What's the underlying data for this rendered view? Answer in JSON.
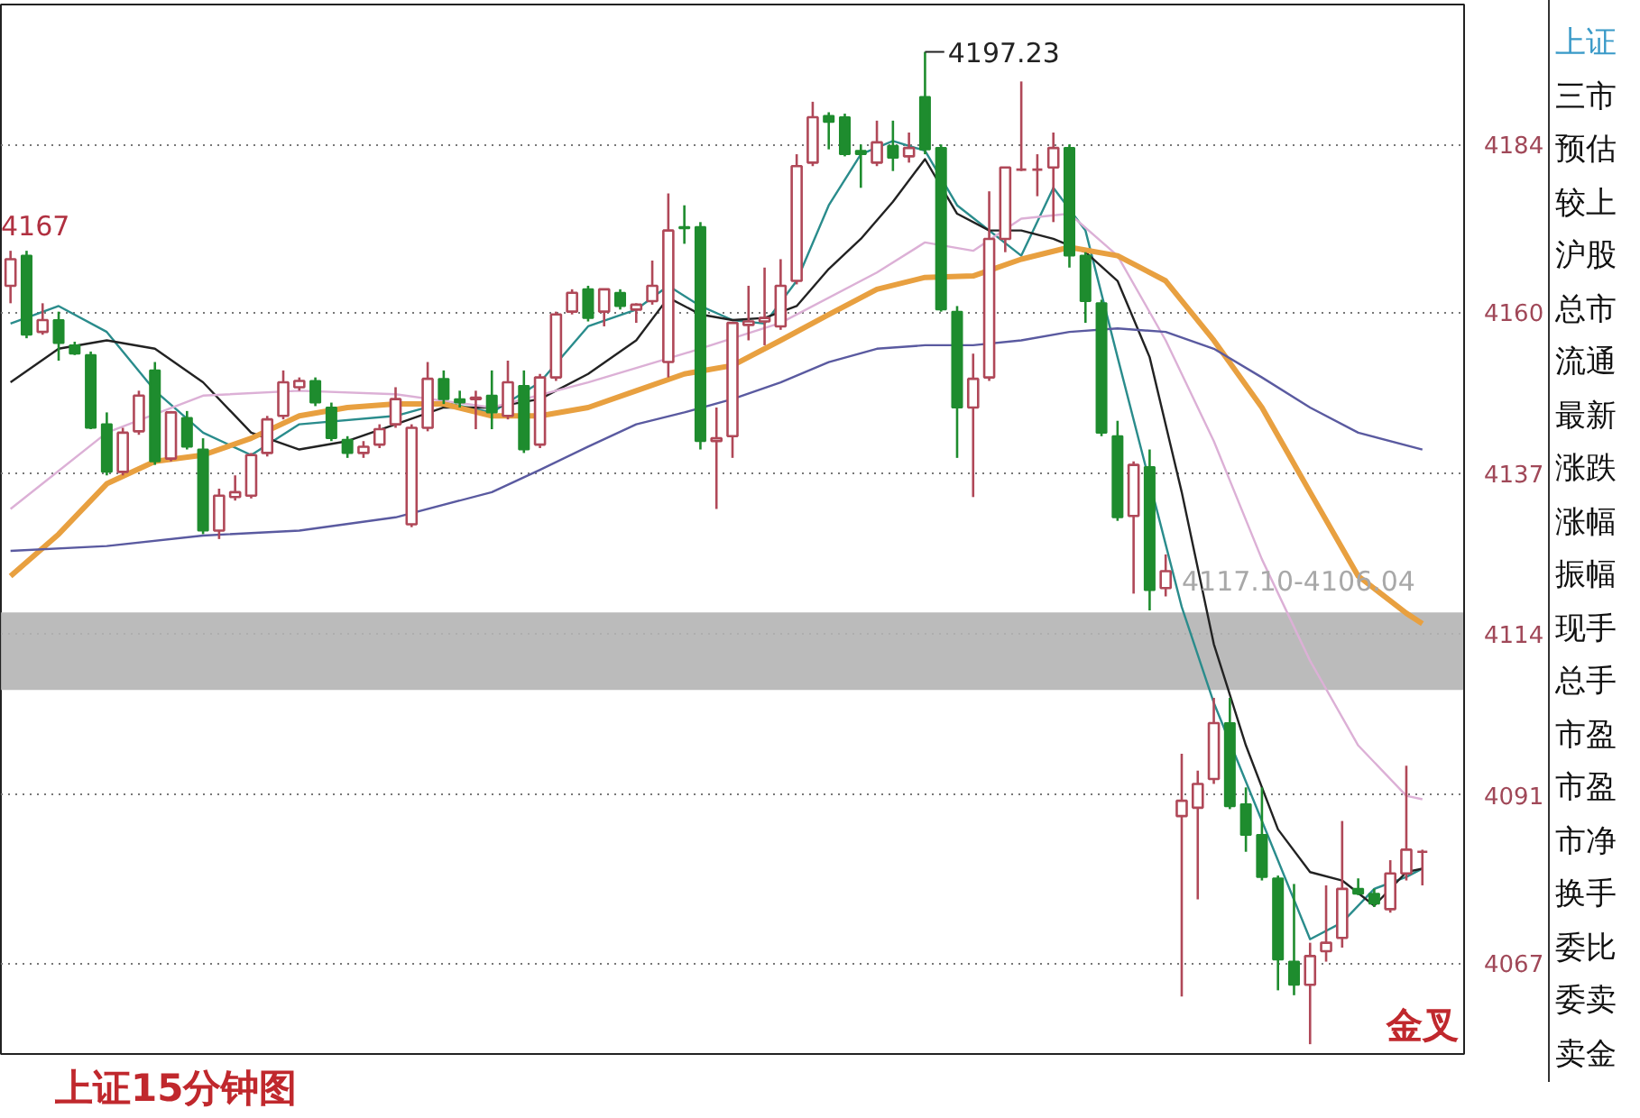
{
  "chart_data": [
    {
      "type": "candlestick",
      "title": "上证15分钟图",
      "categories": [
        null,
        null,
        null,
        null,
        null,
        null,
        null,
        null,
        null,
        null,
        null,
        null,
        null,
        null,
        null,
        null,
        null,
        null,
        null,
        null,
        null,
        null,
        null,
        null,
        null,
        null,
        null,
        null,
        null,
        null,
        null,
        null,
        null,
        null,
        null,
        null,
        null,
        null,
        null,
        null,
        null,
        null,
        null,
        null,
        null,
        null,
        null,
        null,
        null,
        null,
        null,
        null,
        null,
        null,
        null,
        null,
        null,
        null,
        null,
        null,
        null,
        null,
        null,
        null,
        null,
        null,
        null,
        null,
        null,
        null,
        null,
        null,
        null,
        null,
        null,
        null,
        null,
        null,
        null,
        null,
        null,
        null,
        null,
        null,
        null,
        null,
        null,
        null,
        null
      ],
      "ohlc": [
        [
          4163.8,
          4168.8,
          4161.3,
          4167.6
        ],
        [
          4168.1,
          4168.8,
          4156.3,
          4156.8
        ],
        [
          4157.2,
          4161.3,
          4156.8,
          4158.9
        ],
        [
          4158.9,
          4160.1,
          4153.1,
          4155.6
        ],
        [
          4155.3,
          4155.8,
          4153.9,
          4154.1
        ],
        [
          4153.9,
          4154.4,
          4143.3,
          4143.5
        ],
        [
          4144.0,
          4145.7,
          4136.7,
          4137.2
        ],
        [
          4137.2,
          4143.5,
          4136.7,
          4142.8
        ],
        [
          4143.0,
          4148.8,
          4142.5,
          4148.1
        ],
        [
          4151.7,
          4152.9,
          4138.2,
          4138.7
        ],
        [
          4139.1,
          4145.9,
          4138.7,
          4145.7
        ],
        [
          4144.9,
          4145.9,
          4140.4,
          4140.8
        ],
        [
          4140.4,
          4142.0,
          4128.3,
          4128.8
        ],
        [
          4128.8,
          4134.8,
          4127.6,
          4133.8
        ],
        [
          4133.6,
          4136.7,
          4133.1,
          4134.3
        ],
        [
          4133.8,
          4139.9,
          4133.4,
          4139.6
        ],
        [
          4139.9,
          4145.2,
          4139.4,
          4144.7
        ],
        [
          4145.2,
          4151.7,
          4144.7,
          4150.0
        ],
        [
          4149.3,
          4150.7,
          4148.8,
          4150.2
        ],
        [
          4150.2,
          4150.7,
          4146.6,
          4147.1
        ],
        [
          4146.4,
          4147.1,
          4141.6,
          4142.0
        ],
        [
          4141.8,
          4142.3,
          4139.2,
          4139.9
        ],
        [
          4139.9,
          4141.6,
          4139.2,
          4140.8
        ],
        [
          4141.1,
          4144.0,
          4140.6,
          4143.3
        ],
        [
          4144.0,
          4149.3,
          4143.5,
          4147.6
        ],
        [
          4129.7,
          4144.0,
          4129.3,
          4143.5
        ],
        [
          4143.5,
          4152.9,
          4143.0,
          4150.5
        ],
        [
          4150.5,
          4151.7,
          4146.9,
          4147.6
        ],
        [
          4147.6,
          4148.8,
          4146.4,
          4147.1
        ],
        [
          4147.6,
          4148.8,
          4143.3,
          4147.8
        ],
        [
          4148.1,
          4151.7,
          4143.3,
          4145.7
        ],
        [
          4145.2,
          4153.1,
          4144.7,
          4150.0
        ],
        [
          4149.5,
          4151.7,
          4139.9,
          4140.4
        ],
        [
          4141.1,
          4151.2,
          4140.6,
          4150.7
        ],
        [
          4150.7,
          4160.1,
          4150.2,
          4159.7
        ],
        [
          4160.1,
          4163.3,
          4159.7,
          4162.8
        ],
        [
          4163.3,
          4163.8,
          4158.7,
          4159.2
        ],
        [
          4160.1,
          4163.3,
          4158.0,
          4163.3
        ],
        [
          4162.8,
          4163.3,
          4160.4,
          4160.9
        ],
        [
          4160.4,
          4161.3,
          4158.5,
          4161.1
        ],
        [
          4161.6,
          4167.4,
          4161.1,
          4163.8
        ],
        [
          4152.9,
          4177.0,
          4150.7,
          4171.7
        ],
        [
          4172.2,
          4175.3,
          4169.8,
          4172.0
        ],
        [
          4172.2,
          4172.9,
          4140.4,
          4141.6
        ],
        [
          4141.6,
          4146.4,
          4131.9,
          4142.0
        ],
        [
          4142.3,
          4158.5,
          4139.2,
          4158.5
        ],
        [
          4158.2,
          4163.8,
          4156.0,
          4158.7
        ],
        [
          4158.7,
          4166.4,
          4155.3,
          4159.2
        ],
        [
          4158.0,
          4167.6,
          4157.5,
          4163.8
        ],
        [
          4164.5,
          4182.6,
          4164.0,
          4180.9
        ],
        [
          4181.4,
          4190.1,
          4180.9,
          4187.9
        ],
        [
          4188.1,
          4188.6,
          4183.3,
          4187.2
        ],
        [
          4187.9,
          4188.4,
          4182.3,
          4182.6
        ],
        [
          4183.1,
          4184.0,
          4177.8,
          4182.6
        ],
        [
          4181.4,
          4187.4,
          4180.9,
          4184.3
        ],
        [
          4183.8,
          4187.4,
          4180.2,
          4182.1
        ],
        [
          4182.3,
          4185.7,
          4181.4,
          4183.5
        ],
        [
          4190.8,
          4197.23,
          4182.6,
          4183.3
        ],
        [
          4183.5,
          4184.0,
          4160.1,
          4160.4
        ],
        [
          4160.1,
          4160.9,
          4139.2,
          4146.4
        ],
        [
          4146.4,
          4154.1,
          4133.6,
          4150.5
        ],
        [
          4150.7,
          4177.3,
          4150.2,
          4170.5
        ],
        [
          4170.5,
          4180.7,
          4168.6,
          4180.7
        ],
        [
          4180.4,
          4193.0,
          4180.2,
          4180.4
        ],
        [
          4180.4,
          4182.6,
          4176.6,
          4180.4
        ],
        [
          4180.7,
          4185.7,
          4172.9,
          4183.5
        ],
        [
          4183.5,
          4184.0,
          4166.4,
          4168.1
        ],
        [
          4168.1,
          4168.6,
          4158.5,
          4161.6
        ],
        [
          4161.3,
          4161.8,
          4142.3,
          4142.8
        ],
        [
          4142.3,
          4144.5,
          4130.2,
          4130.7
        ],
        [
          4130.9,
          4138.7,
          4119.8,
          4138.2
        ],
        [
          4137.9,
          4140.4,
          4117.4,
          4120.3
        ],
        [
          4120.6,
          4125.4,
          4119.4,
          4123.0
        ],
        [
          4088.0,
          4096.9,
          4062.2,
          4090.2
        ],
        [
          4089.2,
          4094.5,
          4076.1,
          4092.6
        ],
        [
          4093.3,
          4104.9,
          4092.6,
          4101.3
        ],
        [
          4101.3,
          4104.9,
          4089.0,
          4089.4
        ],
        [
          4089.7,
          4092.1,
          4082.9,
          4085.3
        ],
        [
          4085.3,
          4092.1,
          4078.8,
          4079.3
        ],
        [
          4079.1,
          4079.5,
          4063.1,
          4067.5
        ],
        [
          4067.2,
          4078.3,
          4062.4,
          4063.9
        ],
        [
          4063.9,
          4069.9,
          4055.4,
          4068.0
        ],
        [
          4068.7,
          4078.1,
          4067.2,
          4069.9
        ],
        [
          4070.6,
          4087.3,
          4069.2,
          4077.6
        ],
        [
          4077.6,
          4079.1,
          4076.7,
          4076.9
        ],
        [
          4076.9,
          4077.6,
          4075.0,
          4075.5
        ],
        [
          4074.7,
          4081.7,
          4074.2,
          4079.8
        ],
        [
          4079.8,
          4095.2,
          4078.8,
          4083.2
        ],
        [
          4082.9,
          4083.2,
          4078.1,
          4082.9
        ]
      ],
      "series": [
        {
          "type": "line",
          "color": "#2a8c8c",
          "values": [
            4158.4,
            null,
            null,
            4160.9,
            null,
            null,
            4157.2,
            null,
            null,
            4148.8,
            null,
            null,
            4142.8,
            null,
            null,
            4139.6,
            null,
            null,
            4144.0,
            null,
            null,
            null,
            null,
            null,
            4145.2,
            null,
            null,
            4147.1,
            null,
            null,
            4145.7,
            null,
            null,
            4150.0,
            null,
            null,
            4158.0,
            null,
            null,
            4160.4,
            null,
            4163.8,
            null,
            4160.9,
            null,
            4158.9,
            null,
            4158.4,
            null,
            4164.5,
            null,
            4175.3,
            null,
            4182.6,
            null,
            4184.5,
            null,
            4183.1,
            null,
            4175.3,
            null,
            null,
            null,
            4168.1,
            null,
            4177.8,
            null,
            4171.7,
            null,
            4153.6,
            null,
            null,
            null,
            4117.9,
            null,
            4104.2,
            null,
            null,
            null,
            null,
            null,
            4070.4,
            null,
            4072.8,
            null,
            4077.6,
            null,
            4079.3,
            4080.5
          ]
        },
        {
          "type": "line",
          "color": "#222222",
          "values": [
            4150.0,
            null,
            null,
            4154.8,
            null,
            null,
            4156.0,
            null,
            null,
            4154.8,
            null,
            null,
            4150.0,
            null,
            null,
            4142.8,
            null,
            null,
            4140.4,
            null,
            null,
            4141.6,
            null,
            null,
            4144.0,
            null,
            null,
            4146.4,
            null,
            null,
            4146.4,
            null,
            null,
            4147.6,
            null,
            null,
            4151.2,
            null,
            null,
            4156.0,
            null,
            4162.1,
            null,
            4159.7,
            null,
            4158.9,
            null,
            4159.2,
            null,
            4160.9,
            null,
            4166.2,
            null,
            4170.5,
            null,
            4175.8,
            null,
            4181.9,
            null,
            4174.1,
            null,
            4171.7,
            null,
            4171.7,
            null,
            4170.5,
            null,
            4168.6,
            null,
            4164.5,
            null,
            4153.6,
            null,
            4134.3,
            null,
            4112.6,
            null,
            4098.1,
            null,
            4086.1,
            null,
            4080.0,
            null,
            4078.8,
            null,
            4075.2,
            null,
            4080.0,
            4080.5
          ]
        },
        {
          "type": "line",
          "color": "#dcb0d6",
          "values": [
            4131.9,
            null,
            null,
            null,
            null,
            null,
            4142.8,
            null,
            null,
            null,
            null,
            null,
            4148.1,
            null,
            null,
            null,
            null,
            null,
            4148.8,
            null,
            null,
            null,
            null,
            null,
            4148.3,
            null,
            null,
            null,
            null,
            null,
            4146.4,
            null,
            null,
            null,
            null,
            null,
            4150.0,
            null,
            null,
            null,
            null,
            null,
            4154.1,
            null,
            null,
            null,
            null,
            null,
            4158.5,
            null,
            null,
            null,
            null,
            null,
            4165.7,
            null,
            null,
            4170.0,
            null,
            null,
            4168.8,
            null,
            null,
            4173.4,
            null,
            null,
            4174.1,
            null,
            null,
            4168.1,
            null,
            null,
            4156.0,
            null,
            null,
            4141.6,
            null,
            null,
            4124.7,
            null,
            null,
            4110.2,
            null,
            null,
            4098.1,
            null,
            null,
            4090.9,
            4090.4
          ]
        },
        {
          "type": "line",
          "color": "#e8a040",
          "values": [
            4122.3,
            null,
            null,
            4128.3,
            null,
            null,
            4135.5,
            null,
            null,
            4138.7,
            null,
            null,
            4139.6,
            null,
            null,
            4142.0,
            null,
            null,
            4145.2,
            null,
            null,
            4146.4,
            null,
            null,
            4146.9,
            null,
            null,
            4146.9,
            null,
            null,
            4145.2,
            null,
            null,
            4145.2,
            null,
            null,
            4146.4,
            null,
            null,
            4148.8,
            null,
            null,
            4151.2,
            null,
            null,
            4152.4,
            null,
            null,
            4156.0,
            null,
            null,
            4159.7,
            null,
            null,
            4163.3,
            null,
            null,
            4165.0,
            null,
            null,
            4165.2,
            null,
            null,
            4167.6,
            null,
            null,
            4169.3,
            null,
            null,
            4168.1,
            null,
            null,
            4164.5,
            null,
            null,
            4156.0,
            null,
            null,
            4146.4,
            null,
            null,
            4134.3,
            null,
            null,
            4122.3,
            null,
            null,
            4117.0,
            4115.5
          ]
        },
        {
          "type": "line",
          "color": "#5a5aa0",
          "values": [
            4125.9,
            null,
            null,
            null,
            null,
            null,
            4126.6,
            null,
            null,
            null,
            null,
            null,
            4128.1,
            null,
            null,
            null,
            null,
            null,
            4128.8,
            null,
            null,
            null,
            null,
            null,
            4130.7,
            null,
            null,
            null,
            null,
            null,
            4134.3,
            null,
            null,
            4137.5,
            null,
            null,
            4140.8,
            null,
            null,
            4144.0,
            null,
            null,
            4145.7,
            null,
            null,
            4147.6,
            null,
            null,
            4150.0,
            null,
            null,
            4152.9,
            null,
            null,
            4154.8,
            null,
            null,
            4155.3,
            null,
            null,
            4155.3,
            null,
            null,
            4156.0,
            null,
            null,
            4157.2,
            null,
            null,
            4157.7,
            null,
            null,
            4157.2,
            null,
            null,
            4154.8,
            null,
            null,
            4150.7,
            null,
            null,
            4146.4,
            null,
            null,
            4142.8,
            null,
            null,
            null,
            4140.4
          ]
        }
      ],
      "ylim": [
        4054,
        4204
      ],
      "yticks": [
        4067,
        4091,
        4114,
        4137,
        4160,
        4184
      ],
      "grid": "y",
      "tick_labels": "y",
      "bands": [
        {
          "axis": "y",
          "from": 4106.04,
          "to": 4117.1,
          "label": "4117.10-4106.04",
          "color": "#b4b4b4"
        }
      ],
      "annotations": [
        "4197.23",
        "4167",
        "金叉"
      ]
    },
    {
      "type": "other",
      "annotations": [
        "上证",
        "三市",
        "预估",
        "较上",
        "沪股",
        "总市",
        "流通",
        "最新",
        "涨跌",
        "涨幅",
        "振幅",
        "现手",
        "总手",
        "市盈",
        "市盈",
        "市净",
        "换手",
        "委比",
        "委卖",
        "卖金"
      ]
    }
  ]
}
